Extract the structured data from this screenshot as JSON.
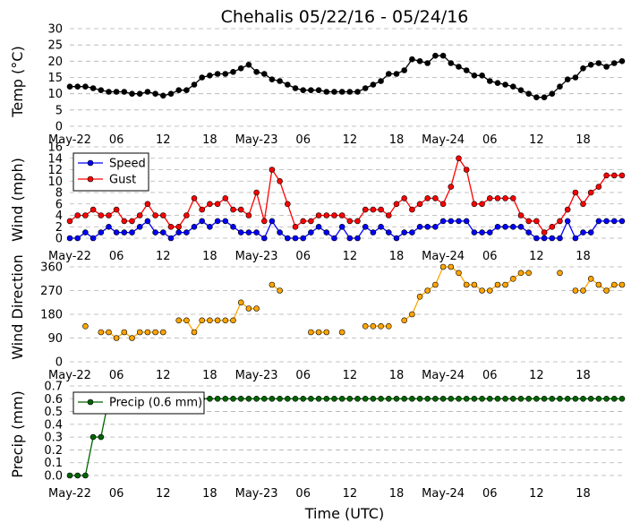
{
  "title": "Chehalis 05/22/16 - 05/24/16",
  "xlabel": "Time (UTC)",
  "x_tick_labels": [
    "May-22",
    "06",
    "12",
    "18",
    "May-23",
    "06",
    "12",
    "18",
    "May-24",
    "06",
    "12",
    "18"
  ],
  "x_tick_hours": [
    0,
    6,
    12,
    18,
    24,
    30,
    36,
    42,
    48,
    54,
    60,
    66
  ],
  "x_range_hours": [
    0,
    71
  ],
  "chart_data": [
    {
      "type": "line",
      "ylabel": "Temp (°C)",
      "ylim": [
        0,
        30
      ],
      "yticks": [
        0,
        5,
        10,
        15,
        20,
        25,
        30
      ],
      "grid": true,
      "series": [
        {
          "color": "#000000",
          "x": [
            0,
            1,
            2,
            3,
            4,
            5,
            6,
            7,
            8,
            9,
            10,
            11,
            12,
            13,
            14,
            15,
            16,
            17,
            18,
            19,
            20,
            21,
            22,
            23,
            24,
            25,
            26,
            27,
            28,
            29,
            30,
            31,
            32,
            33,
            34,
            35,
            36,
            37,
            38,
            39,
            40,
            41,
            42,
            43,
            44,
            45,
            46,
            47,
            48,
            49,
            50,
            51,
            52,
            53,
            54,
            55,
            56,
            57,
            58,
            59,
            60,
            61,
            62,
            63,
            64,
            65,
            66,
            67,
            68,
            69,
            70,
            71
          ],
          "values": [
            12.2,
            12.2,
            12.2,
            11.7,
            11.1,
            10.6,
            10.6,
            10.6,
            10.0,
            10.0,
            10.6,
            10.0,
            9.4,
            10.0,
            11.1,
            11.1,
            12.8,
            15.0,
            15.6,
            16.1,
            16.1,
            16.7,
            17.8,
            18.9,
            16.7,
            16.1,
            14.4,
            13.9,
            12.8,
            11.7,
            11.1,
            11.1,
            11.1,
            10.6,
            10.6,
            10.6,
            10.6,
            10.6,
            11.7,
            12.8,
            13.9,
            16.1,
            16.1,
            17.2,
            20.6,
            20.0,
            19.4,
            21.7,
            21.7,
            19.4,
            18.3,
            17.2,
            15.6,
            15.6,
            13.9,
            13.3,
            12.8,
            12.2,
            11.1,
            10.0,
            8.9,
            8.9,
            10.0,
            12.2,
            14.4,
            15.0,
            17.8,
            18.9,
            19.4,
            18.3,
            19.4,
            20.0
          ]
        }
      ]
    },
    {
      "type": "line",
      "ylabel": "Wind (mph)",
      "ylim": [
        0,
        16
      ],
      "yticks": [
        0,
        2,
        4,
        6,
        8,
        10,
        12,
        14,
        16
      ],
      "grid": true,
      "legend_position": "top-left",
      "series": [
        {
          "name": "Speed",
          "color": "#0000ff",
          "x": [
            0,
            1,
            2,
            3,
            4,
            5,
            6,
            7,
            8,
            9,
            10,
            11,
            12,
            13,
            14,
            15,
            16,
            17,
            18,
            19,
            20,
            21,
            22,
            23,
            24,
            25,
            26,
            27,
            28,
            29,
            30,
            31,
            32,
            33,
            34,
            35,
            36,
            37,
            38,
            39,
            40,
            41,
            42,
            43,
            44,
            45,
            46,
            47,
            48,
            49,
            50,
            51,
            52,
            53,
            54,
            55,
            56,
            57,
            58,
            59,
            60,
            61,
            62,
            63,
            64,
            65,
            66,
            67,
            68,
            69,
            70,
            71
          ],
          "values": [
            0,
            0,
            1,
            0,
            1,
            2,
            1,
            1,
            1,
            2,
            3,
            1,
            1,
            0,
            1,
            1,
            2,
            3,
            2,
            3,
            3,
            2,
            1,
            1,
            1,
            0,
            3,
            1,
            0,
            0,
            0,
            1,
            2,
            1,
            0,
            2,
            0,
            0,
            2,
            1,
            2,
            1,
            0,
            1,
            1,
            2,
            2,
            2,
            3,
            3,
            3,
            3,
            1,
            1,
            1,
            2,
            2,
            2,
            2,
            1,
            0,
            0,
            0,
            0,
            3,
            0,
            1,
            1,
            3,
            3,
            3,
            3
          ]
        },
        {
          "name": "Gust",
          "color": "#ff0000",
          "x": [
            0,
            1,
            2,
            3,
            4,
            5,
            6,
            7,
            8,
            9,
            10,
            11,
            12,
            13,
            14,
            15,
            16,
            17,
            18,
            19,
            20,
            21,
            22,
            23,
            24,
            25,
            26,
            27,
            28,
            29,
            30,
            31,
            32,
            33,
            34,
            35,
            36,
            37,
            38,
            39,
            40,
            41,
            42,
            43,
            44,
            45,
            46,
            47,
            48,
            49,
            50,
            51,
            52,
            53,
            54,
            55,
            56,
            57,
            58,
            59,
            60,
            61,
            62,
            63,
            64,
            65,
            66,
            67,
            68,
            69,
            70,
            71
          ],
          "values": [
            3,
            4,
            4,
            5,
            4,
            4,
            5,
            3,
            3,
            4,
            6,
            4,
            4,
            2,
            2,
            4,
            7,
            5,
            6,
            6,
            7,
            5,
            5,
            4,
            8,
            3,
            12,
            10,
            6,
            2,
            3,
            3,
            4,
            4,
            4,
            4,
            3,
            3,
            5,
            5,
            5,
            4,
            6,
            7,
            5,
            6,
            7,
            7,
            6,
            9,
            14,
            12,
            6,
            6,
            7,
            7,
            7,
            7,
            4,
            3,
            3,
            1,
            2,
            3,
            5,
            8,
            6,
            8,
            9,
            11,
            11,
            11
          ]
        }
      ]
    },
    {
      "type": "scatter",
      "ylabel": "Wind Direction",
      "ylim": [
        0,
        360
      ],
      "yticks": [
        0,
        90,
        180,
        270,
        360
      ],
      "grid": true,
      "series": [
        {
          "color": "#ffa500",
          "x": [
            2,
            4,
            5,
            6,
            7,
            8,
            9,
            10,
            11,
            12,
            14,
            15,
            16,
            17,
            18,
            19,
            20,
            21,
            22,
            23,
            24,
            26,
            27,
            31,
            32,
            33,
            35,
            38,
            39,
            40,
            41,
            43,
            44,
            45,
            46,
            47,
            48,
            49,
            50,
            51,
            52,
            53,
            54,
            55,
            56,
            57,
            58,
            59,
            63,
            65,
            66,
            67,
            68,
            69,
            70,
            71
          ],
          "values": [
            135,
            112,
            112,
            90,
            112,
            90,
            112,
            112,
            112,
            112,
            157,
            157,
            112,
            157,
            157,
            157,
            157,
            157,
            225,
            202,
            202,
            292,
            270,
            112,
            112,
            112,
            112,
            135,
            135,
            135,
            135,
            157,
            180,
            247,
            270,
            292,
            360,
            360,
            337,
            292,
            292,
            270,
            270,
            292,
            292,
            315,
            337,
            337,
            337,
            270,
            270,
            315,
            292,
            270,
            292,
            292
          ],
          "connected_pairs": [
            [
              4,
              5
            ],
            [
              5,
              6
            ],
            [
              6,
              7
            ],
            [
              7,
              8
            ],
            [
              8,
              9
            ],
            [
              9,
              10
            ],
            [
              10,
              11
            ],
            [
              11,
              12
            ],
            [
              14,
              15
            ],
            [
              15,
              16
            ],
            [
              16,
              17
            ],
            [
              17,
              18
            ],
            [
              18,
              19
            ],
            [
              19,
              20
            ],
            [
              20,
              21
            ],
            [
              21,
              22
            ],
            [
              22,
              23
            ],
            [
              23,
              24
            ],
            [
              26,
              27
            ],
            [
              31,
              32
            ],
            [
              32,
              33
            ],
            [
              38,
              39
            ],
            [
              39,
              40
            ],
            [
              40,
              41
            ],
            [
              43,
              44
            ],
            [
              44,
              45
            ],
            [
              45,
              46
            ],
            [
              46,
              47
            ],
            [
              47,
              48
            ],
            [
              48,
              49
            ],
            [
              49,
              50
            ],
            [
              50,
              51
            ],
            [
              51,
              52
            ],
            [
              52,
              53
            ],
            [
              53,
              54
            ],
            [
              54,
              55
            ],
            [
              55,
              56
            ],
            [
              56,
              57
            ],
            [
              57,
              58
            ],
            [
              58,
              59
            ],
            [
              65,
              66
            ],
            [
              66,
              67
            ],
            [
              67,
              68
            ],
            [
              68,
              69
            ],
            [
              69,
              70
            ],
            [
              70,
              71
            ]
          ]
        }
      ]
    },
    {
      "type": "line",
      "ylabel": "Precip (mm)",
      "ylim": [
        0,
        0.7
      ],
      "yticks": [
        0.0,
        0.1,
        0.2,
        0.3,
        0.4,
        0.5,
        0.6,
        0.7
      ],
      "grid": true,
      "legend_position": "top-left",
      "series": [
        {
          "name": "Precip (0.6 mm)",
          "color": "#006400",
          "x": [
            0,
            1,
            2,
            3,
            4,
            5,
            6,
            7,
            8,
            9,
            10,
            11,
            12,
            13,
            14,
            15,
            16,
            17,
            18,
            19,
            20,
            21,
            22,
            23,
            24,
            25,
            26,
            27,
            28,
            29,
            30,
            31,
            32,
            33,
            34,
            35,
            36,
            37,
            38,
            39,
            40,
            41,
            42,
            43,
            44,
            45,
            46,
            47,
            48,
            49,
            50,
            51,
            52,
            53,
            54,
            55,
            56,
            57,
            58,
            59,
            60,
            61,
            62,
            63,
            64,
            65,
            66,
            67,
            68,
            69,
            70,
            71
          ],
          "values": [
            0,
            0,
            0,
            0.3,
            0.3,
            0.6,
            0.6,
            0.6,
            0.6,
            0.6,
            0.6,
            0.6,
            0.6,
            0.6,
            0.6,
            0.6,
            0.6,
            0.6,
            0.6,
            0.6,
            0.6,
            0.6,
            0.6,
            0.6,
            0.6,
            0.6,
            0.6,
            0.6,
            0.6,
            0.6,
            0.6,
            0.6,
            0.6,
            0.6,
            0.6,
            0.6,
            0.6,
            0.6,
            0.6,
            0.6,
            0.6,
            0.6,
            0.6,
            0.6,
            0.6,
            0.6,
            0.6,
            0.6,
            0.6,
            0.6,
            0.6,
            0.6,
            0.6,
            0.6,
            0.6,
            0.6,
            0.6,
            0.6,
            0.6,
            0.6,
            0.6,
            0.6,
            0.6,
            0.6,
            0.6,
            0.6,
            0.6,
            0.6,
            0.6,
            0.6,
            0.6,
            0.6
          ]
        }
      ]
    }
  ]
}
